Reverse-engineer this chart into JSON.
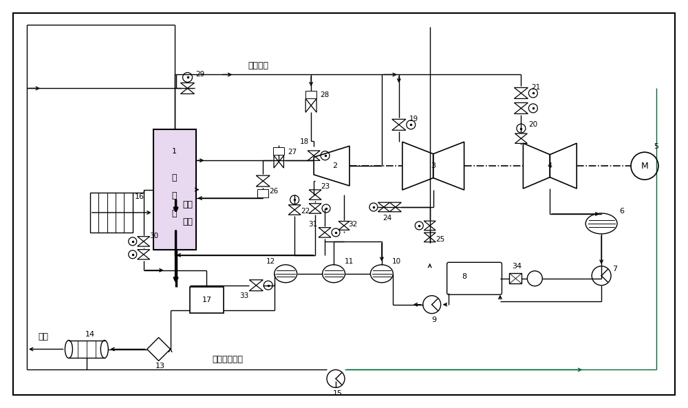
{
  "bg_color": "#ffffff",
  "line_color": "#000000",
  "fig_width": 10.0,
  "fig_height": 5.93,
  "boiler_color": "#e8d8f0",
  "reheat_label": "再热蒸汽",
  "flue_label": "烟气",
  "channel_label": "通道",
  "supply_label": "供水",
  "return_label": "热网回水母管"
}
